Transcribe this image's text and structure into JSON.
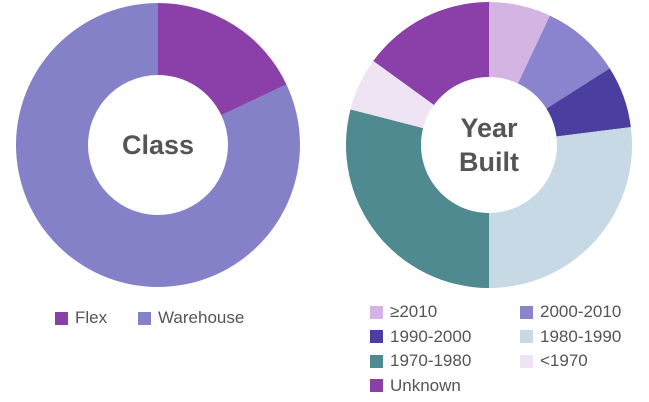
{
  "chart_data": [
    {
      "type": "donut",
      "title": "Class",
      "categories": [
        "Flex",
        "Warehouse"
      ],
      "values": [
        18,
        82
      ],
      "colors": [
        "#8b3fa8",
        "#8581c9"
      ]
    },
    {
      "type": "donut",
      "title": "Year Built",
      "categories": [
        "≥2010",
        "2000-2010",
        "1990-2000",
        "1980-1990",
        "1970-1980",
        "<1970",
        "Unknown"
      ],
      "values": [
        7,
        9,
        7,
        27,
        29,
        6,
        15
      ],
      "colors": [
        "#d4b4e2",
        "#8a83cd",
        "#4a3fa1",
        "#c6d9e4",
        "#4e8a8f",
        "#eee4f3",
        "#8b3fa8"
      ]
    }
  ]
}
